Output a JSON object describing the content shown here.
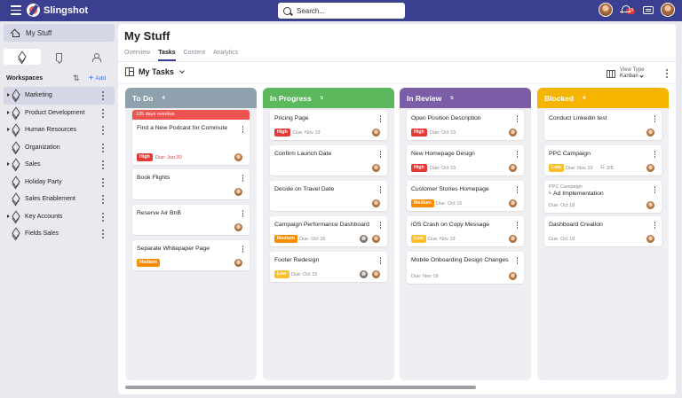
{
  "topbar": {
    "app_name": "Slingshot",
    "search_placeholder": "Search...",
    "notif_count": "19"
  },
  "sidebar": {
    "my_stuff": "My Stuff",
    "workspaces_title": "Workspaces",
    "add_label": "Add",
    "items": [
      {
        "label": "Marketing",
        "expandable": true,
        "active": true
      },
      {
        "label": "Product Development",
        "expandable": true
      },
      {
        "label": "Human Resources",
        "expandable": true
      },
      {
        "label": "Organization",
        "expandable": false
      },
      {
        "label": "Sales",
        "expandable": true
      },
      {
        "label": "Holiday Party",
        "expandable": false
      },
      {
        "label": "Sales Enablement",
        "expandable": false
      },
      {
        "label": "Key Accounts",
        "expandable": true
      },
      {
        "label": "Fields Sales",
        "expandable": false
      }
    ]
  },
  "main": {
    "title": "My Stuff",
    "tabs": [
      "Overview",
      "Tasks",
      "Content",
      "Analytics"
    ],
    "active_tab": "Tasks",
    "view_name": "My Tasks",
    "view_type_label": "View Type",
    "view_type_value": "Kanban"
  },
  "board": {
    "columns": [
      {
        "title": "To Do",
        "count": "4",
        "color": "#8fa1ac",
        "cards": [
          {
            "overdue": "105 days overdue",
            "title": "Find a New Podcast for Commute",
            "priority": "High",
            "due": "Due: Jun 30"
          },
          {
            "title": "Book Flights"
          },
          {
            "title": "Reserve Air BnB"
          },
          {
            "title": "Separate Whitepaper Page",
            "priority": "Medium"
          }
        ]
      },
      {
        "title": "In Progress",
        "count": "5",
        "color": "#5cb85c",
        "cards": [
          {
            "title": "Pricing Page",
            "priority": "High",
            "due": "Due: Nov 19"
          },
          {
            "title": "Confirm Launch Date"
          },
          {
            "title": "Decide on Travel Date"
          },
          {
            "title": "Campaign Performance Dashboard",
            "priority": "Medium",
            "due": "Due: Oct 15"
          },
          {
            "title": "Footer Redesign",
            "priority": "Low",
            "due": "Due: Oct 15"
          }
        ]
      },
      {
        "title": "In Review",
        "count": "5",
        "color": "#7b5ea7",
        "cards": [
          {
            "title": "Open Position Description",
            "priority": "High",
            "due": "Due: Oct 15"
          },
          {
            "title": "New Homepage Design",
            "priority": "High",
            "due": "Due: Oct 15"
          },
          {
            "title": "Customer Stories Homepage",
            "priority": "Medium",
            "due": "Due: Oct 15"
          },
          {
            "title": "iOS Crash on Copy Message",
            "priority": "Low",
            "due": "Due: Nov 19"
          },
          {
            "title": "Mobile Onboarding Design Changes",
            "due": "Due: Nov 19"
          }
        ]
      },
      {
        "title": "Blocked",
        "count": "4",
        "color": "#f5b400",
        "cards": [
          {
            "title": "Conduct Linkedin test"
          },
          {
            "title": "PPC Campaign",
            "priority": "Low",
            "due": "Due: Nov 19",
            "subtasks": "2/5"
          },
          {
            "parent": "PPC Campaign",
            "title": "Ad Implementation",
            "due": "Due: Oct 18"
          },
          {
            "title": "Dashboard Creation",
            "due": "Due: Oct 18"
          }
        ]
      }
    ]
  }
}
